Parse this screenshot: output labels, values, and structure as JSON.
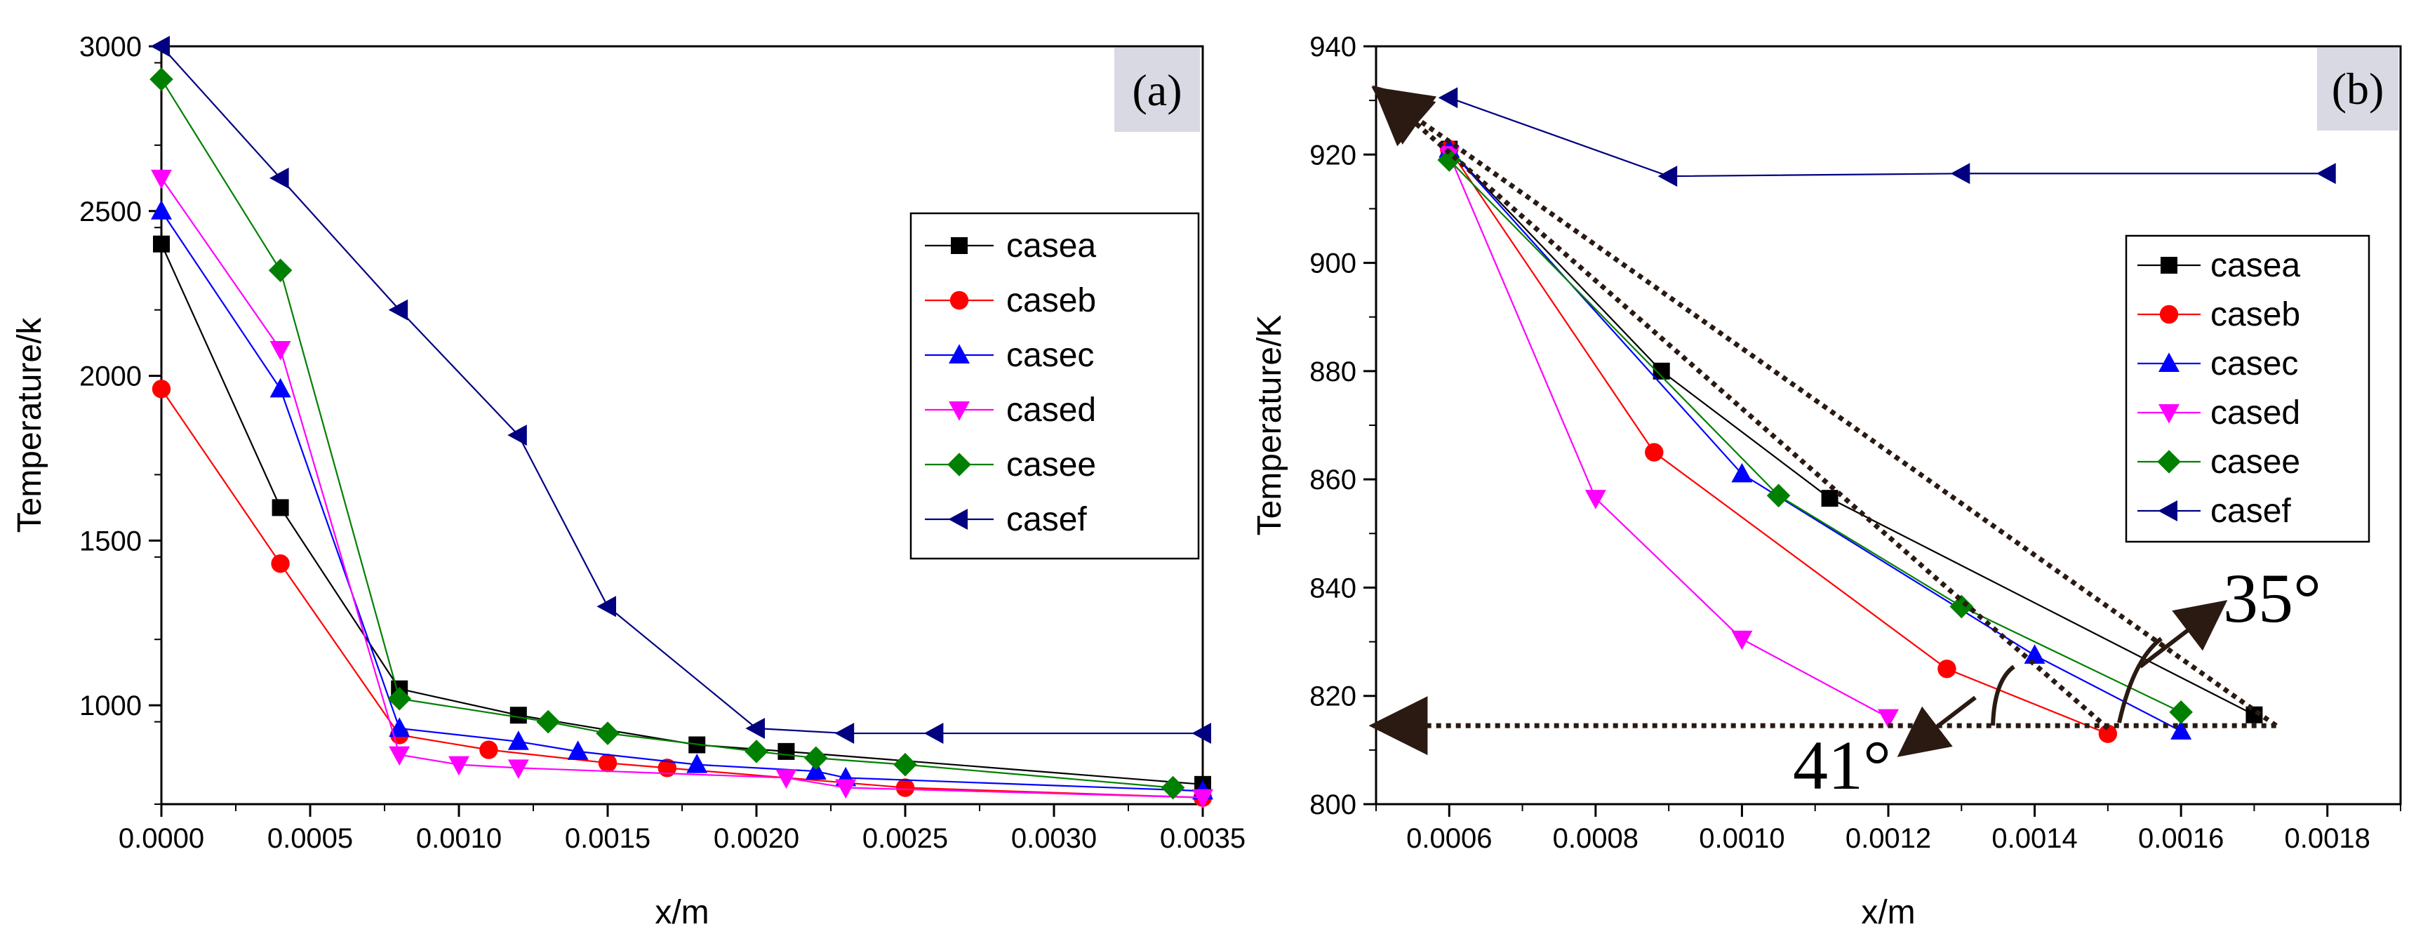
{
  "chart_data": [
    {
      "panel": "(a)",
      "type": "line",
      "title": "",
      "xlabel": "x/m",
      "ylabel": "Temperature/k",
      "xlim": [
        0,
        0.0035
      ],
      "ylim": [
        700,
        3000
      ],
      "xticks": [
        "0.0000",
        "0.0005",
        "0.0010",
        "0.0015",
        "0.0020",
        "0.0025",
        "0.0030",
        "0.0035"
      ],
      "yticks": [
        "1000",
        "1500",
        "2000",
        "2500",
        "3000"
      ],
      "legend_position": "right-middle",
      "series": [
        {
          "name": "casea",
          "color": "#000000",
          "marker": "square",
          "x": [
            0,
            0.0004,
            0.0008,
            0.0012,
            0.0018,
            0.0021,
            0.0035
          ],
          "y": [
            2400,
            1600,
            1050,
            970,
            880,
            860,
            760
          ]
        },
        {
          "name": "caseb",
          "color": "#ff0000",
          "marker": "circle",
          "x": [
            0,
            0.0004,
            0.0008,
            0.0011,
            0.0015,
            0.0017,
            0.0025,
            0.0035
          ],
          "y": [
            1960,
            1430,
            910,
            865,
            825,
            810,
            750,
            720
          ]
        },
        {
          "name": "casec",
          "color": "#0000ff",
          "marker": "triangle-up",
          "x": [
            0,
            0.0004,
            0.0008,
            0.0012,
            0.0014,
            0.0018,
            0.0022,
            0.0023,
            0.0035
          ],
          "y": [
            2500,
            1960,
            930,
            890,
            860,
            820,
            800,
            780,
            740
          ]
        },
        {
          "name": "cased",
          "color": "#ff00ff",
          "marker": "triangle-down",
          "x": [
            0,
            0.0004,
            0.0008,
            0.001,
            0.0012,
            0.0021,
            0.0023,
            0.0035
          ],
          "y": [
            2600,
            2080,
            850,
            820,
            810,
            780,
            750,
            720
          ]
        },
        {
          "name": "casee",
          "color": "#008000",
          "marker": "diamond",
          "x": [
            0,
            0.0004,
            0.0008,
            0.0013,
            0.0015,
            0.002,
            0.0022,
            0.0025,
            0.0034
          ],
          "y": [
            2900,
            2320,
            1020,
            950,
            915,
            860,
            840,
            820,
            750
          ]
        },
        {
          "name": "casef",
          "color": "#000080",
          "marker": "triangle-left",
          "x": [
            0,
            0.0004,
            0.0008,
            0.0012,
            0.0015,
            0.002,
            0.0023,
            0.0026,
            0.0035
          ],
          "y": [
            3000,
            2600,
            2200,
            1820,
            1300,
            930,
            915,
            915,
            915
          ]
        }
      ]
    },
    {
      "panel": "(b)",
      "type": "line",
      "title": "",
      "xlabel": "x/m",
      "ylabel": "Temperature/K",
      "xlim": [
        0.0005,
        0.0019
      ],
      "ylim": [
        800,
        940
      ],
      "xticks": [
        "0.0006",
        "0.0008",
        "0.0010",
        "0.0012",
        "0.0014",
        "0.0016",
        "0.0018"
      ],
      "yticks": [
        "800",
        "820",
        "840",
        "860",
        "880",
        "900",
        "920",
        "940"
      ],
      "legend_position": "right-middle",
      "series": [
        {
          "name": "casea",
          "color": "#000000",
          "marker": "square",
          "x": [
            0.0006,
            0.00089,
            0.00112,
            0.0017
          ],
          "y": [
            921,
            880,
            856.5,
            816.5
          ]
        },
        {
          "name": "caseb",
          "color": "#ff0000",
          "marker": "circle",
          "x": [
            0.0006,
            0.00088,
            0.00128,
            0.0015
          ],
          "y": [
            921,
            865,
            825,
            813
          ]
        },
        {
          "name": "casec",
          "color": "#0000ff",
          "marker": "triangle-up",
          "x": [
            0.0006,
            0.001,
            0.0014,
            0.0016
          ],
          "y": [
            921,
            861,
            827.5,
            813.5
          ]
        },
        {
          "name": "cased",
          "color": "#ff00ff",
          "marker": "triangle-down",
          "x": [
            0.0006,
            0.0008,
            0.001,
            0.0012
          ],
          "y": [
            920,
            856.5,
            830.5,
            816
          ]
        },
        {
          "name": "casee",
          "color": "#008000",
          "marker": "diamond",
          "x": [
            0.0006,
            0.00105,
            0.0013,
            0.0016
          ],
          "y": [
            919,
            857,
            836.5,
            817
          ]
        },
        {
          "name": "casef",
          "color": "#000080",
          "marker": "triangle-left",
          "x": [
            0.0006,
            0.0009,
            0.0013,
            0.0018
          ],
          "y": [
            930.5,
            916,
            916.5,
            916.5
          ]
        }
      ],
      "annotations": {
        "angles": [
          "35°",
          "41°"
        ],
        "dotted_lines": [
          {
            "from": [
              0.00173,
              814.5
            ],
            "to": [
              0.00051,
              931
            ]
          },
          {
            "from": [
              0.0015,
              814
            ],
            "to": [
              0.00051,
              931
            ]
          },
          {
            "from": [
              0.00173,
              814.5
            ],
            "to": [
              0.00051,
              814.5
            ]
          }
        ]
      }
    }
  ]
}
